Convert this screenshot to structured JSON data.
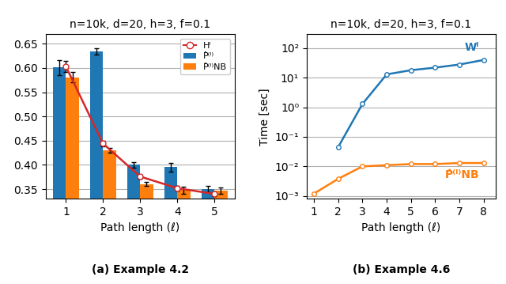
{
  "chart_data": [
    {
      "type": "bar",
      "title": "n=10k, d=20, h=3, f=0.1",
      "xlabel": "Path length (ℓ)",
      "x": [
        1,
        2,
        3,
        4,
        5
      ],
      "xlim": [
        0.45,
        5.55
      ],
      "xticks": [
        1,
        2,
        3,
        4,
        5
      ],
      "ylim": [
        0.33,
        0.67
      ],
      "yticks": [
        {
          "value": 0.35,
          "label": "0.35"
        },
        {
          "value": 0.4,
          "label": "0.40"
        },
        {
          "value": 0.45,
          "label": "0.45"
        },
        {
          "value": 0.5,
          "label": "0.50"
        },
        {
          "value": 0.55,
          "label": "0.55"
        },
        {
          "value": 0.6,
          "label": "0.60"
        },
        {
          "value": 0.65,
          "label": "0.65"
        }
      ],
      "grid": "y",
      "legend": "upper right",
      "annotations": [
        "(a) Example 4.2"
      ],
      "series": [
        {
          "name": "Hˡ",
          "type": "line",
          "color": "#d62728",
          "marker": "o",
          "values": [
            0.603,
            0.444,
            0.376,
            0.352,
            0.34
          ],
          "errors": [
            0.012,
            0.006,
            0.004,
            0.005,
            0.004
          ]
        },
        {
          "name": "P̂⁽ˡ⁾",
          "type": "bar",
          "color": "#1f77b4",
          "values": [
            0.601,
            0.634,
            0.4,
            0.395,
            0.35
          ],
          "errors": [
            0.015,
            0.007,
            0.006,
            0.009,
            0.007
          ]
        },
        {
          "name": "P̂⁽ˡ⁾NB",
          "type": "bar",
          "color": "#ff7f0e",
          "values": [
            0.581,
            0.43,
            0.36,
            0.348,
            0.347
          ],
          "errors": [
            0.01,
            0.005,
            0.004,
            0.007,
            0.006
          ]
        }
      ]
    },
    {
      "type": "line",
      "title": "n=10k, d=20, h=3, f=0.1",
      "xlabel": "Path length (ℓ)",
      "ylabel": "Time [sec]",
      "x": [
        1,
        2,
        3,
        4,
        5,
        6,
        7,
        8
      ],
      "xlim": [
        0.7,
        8.5
      ],
      "xticks": [
        1,
        2,
        3,
        4,
        5,
        6,
        7,
        8
      ],
      "log": "y",
      "ylim": [
        0.0008,
        300
      ],
      "yticks": [
        {
          "value": 0.001,
          "label": "10⁻³"
        },
        {
          "value": 0.01,
          "label": "10⁻²"
        },
        {
          "value": 0.1,
          "label": "10⁻¹"
        },
        {
          "value": 1,
          "label": "10⁰"
        },
        {
          "value": 10,
          "label": "10¹"
        },
        {
          "value": 100,
          "label": "10²"
        }
      ],
      "grid": "y",
      "annotations": [
        "(b) Example 4.6"
      ],
      "series": [
        {
          "name": "Wˡ",
          "color": "#1f77b4",
          "marker": "o",
          "values": [
            null,
            0.045,
            1.3,
            13.0,
            18.0,
            22.0,
            28.0,
            40.0
          ]
        },
        {
          "name": "P̂⁽ˡ⁾NB",
          "color": "#ff7f0e",
          "marker": "o",
          "values": [
            0.0012,
            0.0038,
            0.01,
            0.011,
            0.012,
            0.012,
            0.013,
            0.013
          ]
        }
      ]
    }
  ]
}
